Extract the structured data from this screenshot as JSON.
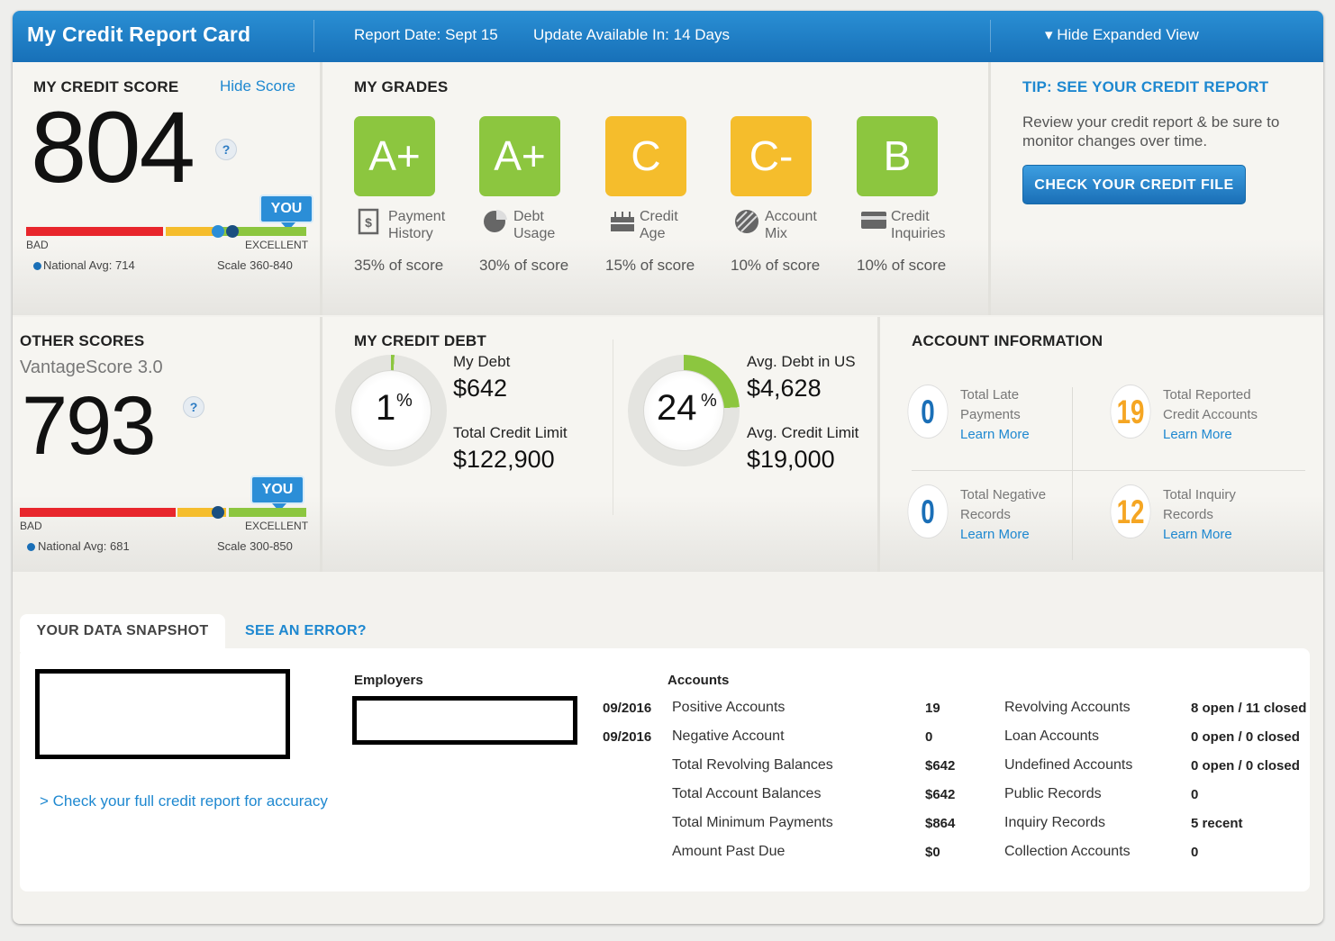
{
  "header": {
    "title": "My Credit Report Card",
    "report_date": "Report Date: Sept 15",
    "update": "Update Available In: 14 Days",
    "toggle": "▾ Hide Expanded View"
  },
  "credit_score": {
    "heading": "MY CREDIT SCORE",
    "hide_link": "Hide Score",
    "score": "804",
    "help": "?",
    "you": "YOU",
    "bad": "BAD",
    "excellent": "EXCELLENT",
    "national_avg": "National Avg: 714",
    "scale": "Scale 360-840"
  },
  "grades": {
    "heading": "MY GRADES",
    "items": [
      {
        "grade": "A+",
        "label1": "Payment",
        "label2": "History",
        "pct": "35% of score",
        "color": "#8cc63f",
        "icon": "receipt-icon"
      },
      {
        "grade": "A+",
        "label1": "Debt",
        "label2": "Usage",
        "pct": "30% of score",
        "color": "#8cc63f",
        "icon": "pie-icon"
      },
      {
        "grade": "C",
        "label1": "Credit",
        "label2": "Age",
        "pct": "15% of score",
        "color": "#f5bd2c",
        "icon": "cake-icon"
      },
      {
        "grade": "C-",
        "label1": "Account",
        "label2": "Mix",
        "pct": "10% of score",
        "color": "#f5bd2c",
        "icon": "mix-icon"
      },
      {
        "grade": "B",
        "label1": "Credit",
        "label2": "Inquiries",
        "pct": "10% of score",
        "color": "#8cc63f",
        "icon": "card-icon"
      }
    ]
  },
  "tip": {
    "heading": "TIP: SEE YOUR CREDIT REPORT",
    "text": "Review your credit report & be sure to monitor changes over time.",
    "button": "CHECK YOUR CREDIT FILE"
  },
  "other_scores": {
    "heading": "OTHER SCORES",
    "model": "VantageScore 3.0",
    "score": "793",
    "help": "?",
    "you": "YOU",
    "bad": "BAD",
    "excellent": "EXCELLENT",
    "national_avg": "National Avg: 681",
    "scale": "Scale 300-850"
  },
  "credit_debt": {
    "heading": "MY CREDIT DEBT",
    "mine": {
      "pct": "1",
      "pct_sign": "%",
      "usage_fraction": 0.01,
      "debt_label": "My Debt",
      "debt": "$642",
      "limit_label": "Total Credit Limit",
      "limit": "$122,900"
    },
    "us": {
      "pct": "24",
      "pct_sign": "%",
      "usage_fraction": 0.24,
      "debt_label": "Avg. Debt in US",
      "debt": "$4,628",
      "limit_label": "Avg. Credit Limit",
      "limit": "$19,000"
    }
  },
  "account_info": {
    "heading": "ACCOUNT INFORMATION",
    "items": [
      {
        "value": "0",
        "line1": "Total Late",
        "line2": "Payments",
        "link": "Learn More",
        "color": "#1a6fb7"
      },
      {
        "value": "19",
        "line1": "Total Reported",
        "line2": "Credit Accounts",
        "link": "Learn More",
        "color": "#f5a623"
      },
      {
        "value": "0",
        "line1": "Total Negative",
        "line2": "Records",
        "link": "Learn More",
        "color": "#1a6fb7"
      },
      {
        "value": "12",
        "line1": "Total Inquiry",
        "line2": "Records",
        "link": "Learn More",
        "color": "#f5a623"
      }
    ]
  },
  "snapshot": {
    "tab_active": "YOUR DATA SNAPSHOT",
    "tab_link": "SEE AN ERROR?",
    "check_link": "> Check your full credit report for accuracy",
    "employers_heading": "Employers",
    "accounts_heading": "Accounts",
    "dates": [
      "09/2016",
      "09/2016"
    ],
    "left_rows": [
      {
        "label": "Positive Accounts",
        "value": "19"
      },
      {
        "label": "Negative Account",
        "value": "0"
      },
      {
        "label": "Total Revolving Balances",
        "value": "$642"
      },
      {
        "label": "Total Account Balances",
        "value": "$642"
      },
      {
        "label": "Total Minimum Payments",
        "value": "$864"
      },
      {
        "label": "Amount Past Due",
        "value": "$0"
      }
    ],
    "right_rows": [
      {
        "label": "Revolving Accounts",
        "value": "8 open / 11 closed"
      },
      {
        "label": "Loan Accounts",
        "value": "0 open / 0 closed"
      },
      {
        "label": "Undefined Accounts",
        "value": "0 open / 0 closed"
      },
      {
        "label": "Public Records",
        "value": "0"
      },
      {
        "label": "Inquiry Records",
        "value": "5 recent"
      },
      {
        "label": "Collection Accounts",
        "value": "0"
      }
    ]
  }
}
